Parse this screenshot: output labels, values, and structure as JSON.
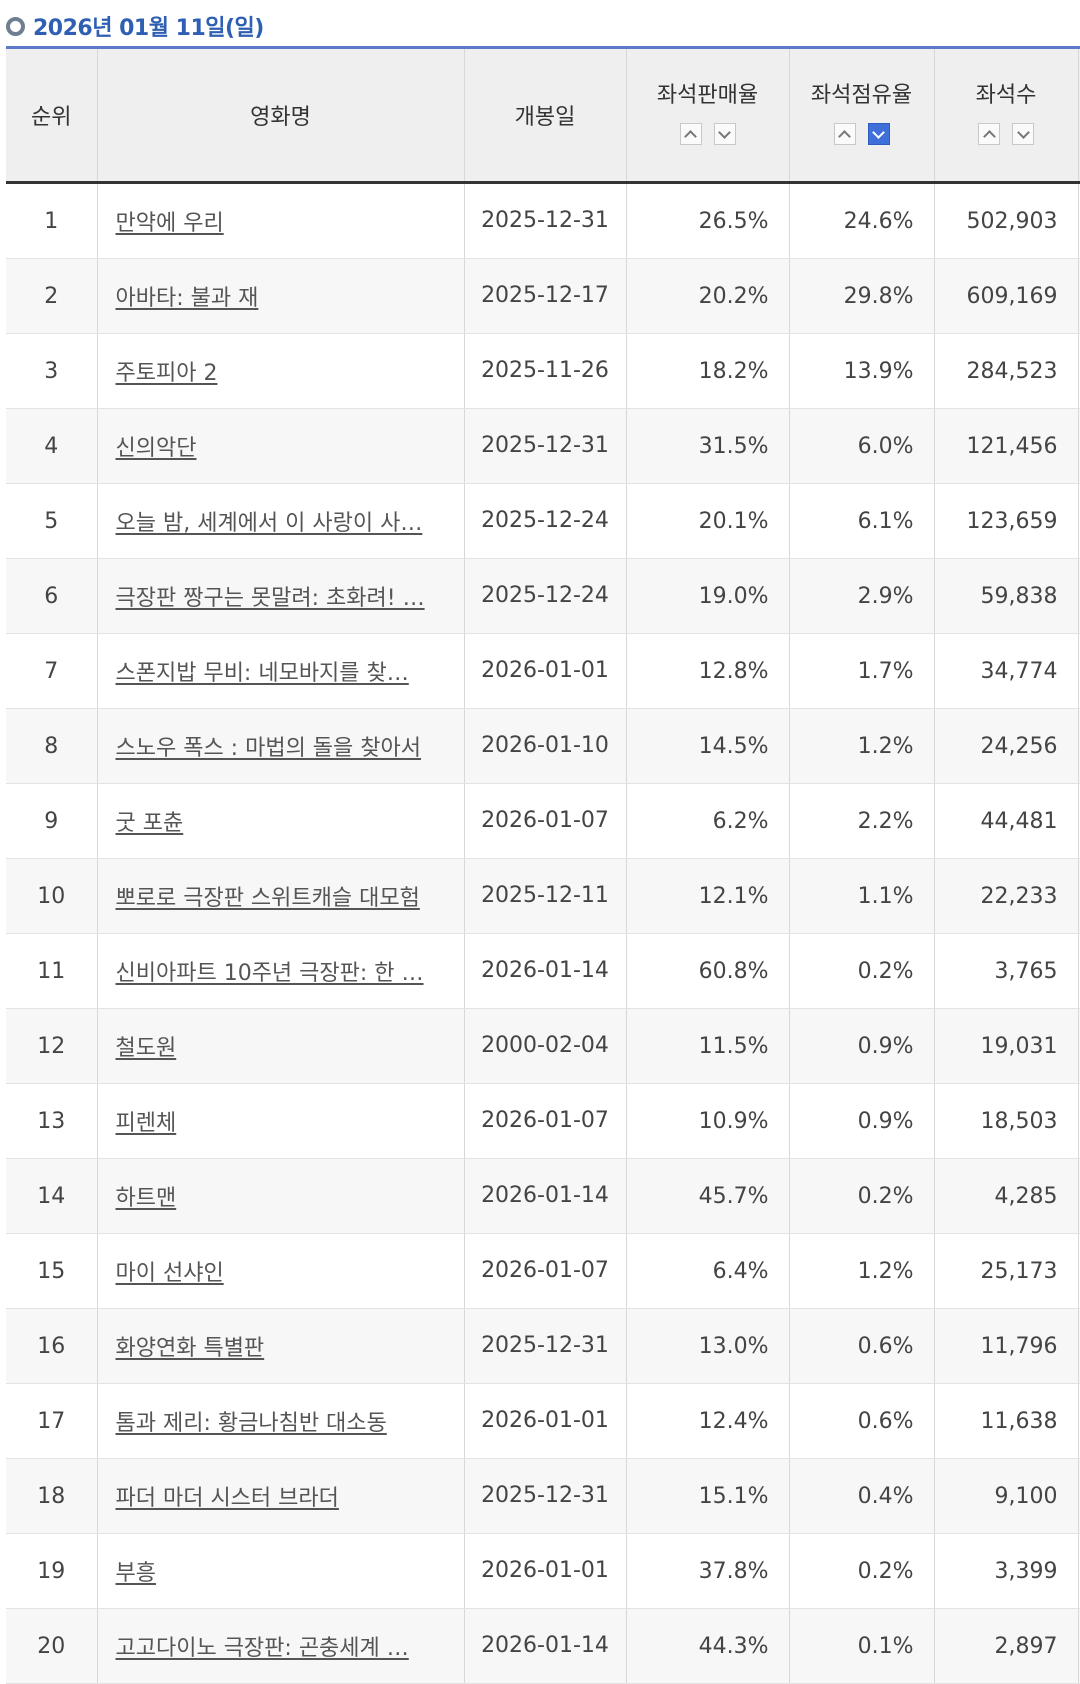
{
  "header": {
    "date": "2026년 01월 11일(일)"
  },
  "columns": {
    "rank": "순위",
    "title": "영화명",
    "release": "개봉일",
    "seat_sales": "좌석판매율",
    "seat_share": "좌석점유율",
    "seats": "좌석수"
  },
  "sort": {
    "active_column": "seat_share",
    "active_direction": "down"
  },
  "rows": [
    {
      "rank": "1",
      "title": "만약에 우리",
      "release": "2025-12-31",
      "seat_sales": "26.5%",
      "seat_share": "24.6%",
      "seats": "502,903"
    },
    {
      "rank": "2",
      "title": "아바타: 불과 재",
      "release": "2025-12-17",
      "seat_sales": "20.2%",
      "seat_share": "29.8%",
      "seats": "609,169"
    },
    {
      "rank": "3",
      "title": "주토피아 2",
      "release": "2025-11-26",
      "seat_sales": "18.2%",
      "seat_share": "13.9%",
      "seats": "284,523"
    },
    {
      "rank": "4",
      "title": "신의악단",
      "release": "2025-12-31",
      "seat_sales": "31.5%",
      "seat_share": "6.0%",
      "seats": "121,456"
    },
    {
      "rank": "5",
      "title": "오늘 밤, 세계에서 이 사랑이 사…",
      "release": "2025-12-24",
      "seat_sales": "20.1%",
      "seat_share": "6.1%",
      "seats": "123,659"
    },
    {
      "rank": "6",
      "title": "극장판 짱구는 못말려: 초화려! …",
      "release": "2025-12-24",
      "seat_sales": "19.0%",
      "seat_share": "2.9%",
      "seats": "59,838"
    },
    {
      "rank": "7",
      "title": "스폰지밥 무비: 네모바지를 찾…",
      "release": "2026-01-01",
      "seat_sales": "12.8%",
      "seat_share": "1.7%",
      "seats": "34,774"
    },
    {
      "rank": "8",
      "title": "스노우 폭스 : 마법의 돌을 찾아서",
      "release": "2026-01-10",
      "seat_sales": "14.5%",
      "seat_share": "1.2%",
      "seats": "24,256"
    },
    {
      "rank": "9",
      "title": "굿 포츈",
      "release": "2026-01-07",
      "seat_sales": "6.2%",
      "seat_share": "2.2%",
      "seats": "44,481"
    },
    {
      "rank": "10",
      "title": "뽀로로 극장판 스위트캐슬 대모험",
      "release": "2025-12-11",
      "seat_sales": "12.1%",
      "seat_share": "1.1%",
      "seats": "22,233"
    },
    {
      "rank": "11",
      "title": "신비아파트 10주년 극장판: 한 …",
      "release": "2026-01-14",
      "seat_sales": "60.8%",
      "seat_share": "0.2%",
      "seats": "3,765"
    },
    {
      "rank": "12",
      "title": "철도원",
      "release": "2000-02-04",
      "seat_sales": "11.5%",
      "seat_share": "0.9%",
      "seats": "19,031"
    },
    {
      "rank": "13",
      "title": "피렌체",
      "release": "2026-01-07",
      "seat_sales": "10.9%",
      "seat_share": "0.9%",
      "seats": "18,503"
    },
    {
      "rank": "14",
      "title": "하트맨",
      "release": "2026-01-14",
      "seat_sales": "45.7%",
      "seat_share": "0.2%",
      "seats": "4,285"
    },
    {
      "rank": "15",
      "title": "마이 선샤인",
      "release": "2026-01-07",
      "seat_sales": "6.4%",
      "seat_share": "1.2%",
      "seats": "25,173"
    },
    {
      "rank": "16",
      "title": "화양연화 특별판",
      "release": "2025-12-31",
      "seat_sales": "13.0%",
      "seat_share": "0.6%",
      "seats": "11,796"
    },
    {
      "rank": "17",
      "title": "톰과 제리: 황금나침반 대소동",
      "release": "2026-01-01",
      "seat_sales": "12.4%",
      "seat_share": "0.6%",
      "seats": "11,638"
    },
    {
      "rank": "18",
      "title": "파더 마더 시스터 브라더",
      "release": "2025-12-31",
      "seat_sales": "15.1%",
      "seat_share": "0.4%",
      "seats": "9,100"
    },
    {
      "rank": "19",
      "title": "부흥",
      "release": "2026-01-01",
      "seat_sales": "37.8%",
      "seat_share": "0.2%",
      "seats": "3,399"
    },
    {
      "rank": "20",
      "title": "고고다이노 극장판: 곤충세계 …",
      "release": "2026-01-14",
      "seat_sales": "44.3%",
      "seat_share": "0.1%",
      "seats": "2,897"
    }
  ]
}
